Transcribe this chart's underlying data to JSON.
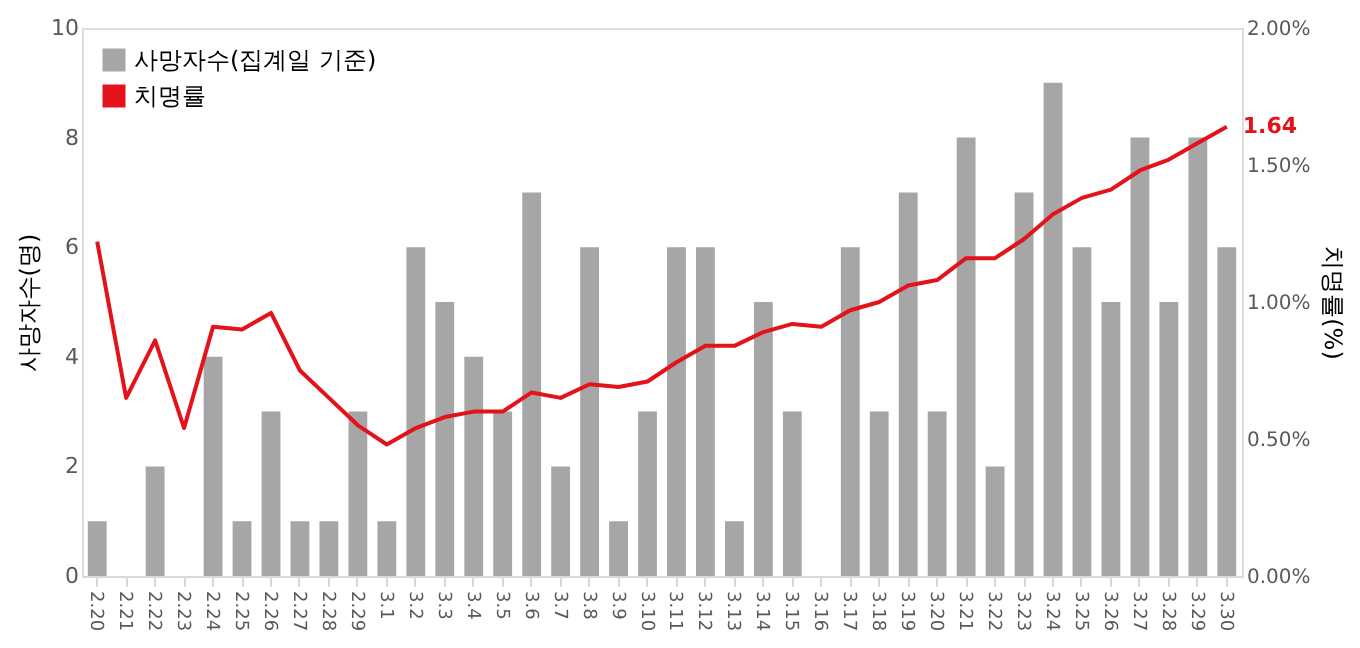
{
  "chart_data": {
    "type": "bar",
    "categories": [
      "2.20",
      "2.21",
      "2.22",
      "2.23",
      "2.24",
      "2.25",
      "2.26",
      "2.27",
      "2.28",
      "2.29",
      "3.1",
      "3.2",
      "3.3",
      "3.4",
      "3.5",
      "3.6",
      "3.7",
      "3.8",
      "3.9",
      "3.10",
      "3.11",
      "3.12",
      "3.13",
      "3.14",
      "3.15",
      "3.16",
      "3.17",
      "3.18",
      "3.19",
      "3.20",
      "3.21",
      "3.22",
      "3.23",
      "3.24",
      "3.25",
      "3.26",
      "3.27",
      "3.28",
      "3.29",
      "3.30"
    ],
    "series": [
      {
        "name": "사망자수(집계일 기준)",
        "color": "#a6a6a6",
        "values": [
          1,
          0,
          2,
          0,
          4,
          1,
          3,
          1,
          1,
          3,
          1,
          6,
          5,
          4,
          3,
          7,
          2,
          6,
          1,
          3,
          6,
          6,
          1,
          5,
          3,
          0,
          6,
          3,
          7,
          3,
          8,
          2,
          7,
          9,
          6,
          5,
          8,
          5,
          8,
          6
        ]
      },
      {
        "name": "치명률",
        "type": "line",
        "axis": "y2",
        "color": "#e3121b",
        "values": [
          1.22,
          0.65,
          0.86,
          0.54,
          0.91,
          0.9,
          0.96,
          0.75,
          0.65,
          0.55,
          0.48,
          0.54,
          0.58,
          0.6,
          0.6,
          0.67,
          0.65,
          0.7,
          0.69,
          0.71,
          0.78,
          0.84,
          0.84,
          0.89,
          0.92,
          0.91,
          0.97,
          1.0,
          1.06,
          1.08,
          1.16,
          1.16,
          1.23,
          1.32,
          1.38,
          1.41,
          1.48,
          1.52,
          1.58,
          1.64
        ],
        "value_labels": [
          null,
          null,
          null,
          null,
          null,
          null,
          null,
          null,
          null,
          null,
          null,
          null,
          null,
          null,
          null,
          null,
          null,
          null,
          null,
          null,
          null,
          null,
          null,
          null,
          null,
          null,
          null,
          null,
          null,
          null,
          null,
          null,
          null,
          null,
          null,
          null,
          null,
          null,
          null,
          "1.64"
        ]
      }
    ],
    "ylabel": "사망자수(명)",
    "y2label": "치명률(%)",
    "ylim": [
      0,
      10
    ],
    "yticks": [
      0,
      2,
      4,
      6,
      8,
      10
    ],
    "y2lim": [
      0,
      2
    ],
    "y2ticks": [
      {
        "value": 0,
        "label": "0.00%"
      },
      {
        "value": 0.5,
        "label": "0.50%"
      },
      {
        "value": 1,
        "label": "1.00%"
      },
      {
        "value": 1.5,
        "label": "1.50%"
      },
      {
        "value": 2,
        "label": "2.00%"
      }
    ],
    "grid": false,
    "legend": "top left",
    "marker": "none",
    "line_style": "solid"
  }
}
